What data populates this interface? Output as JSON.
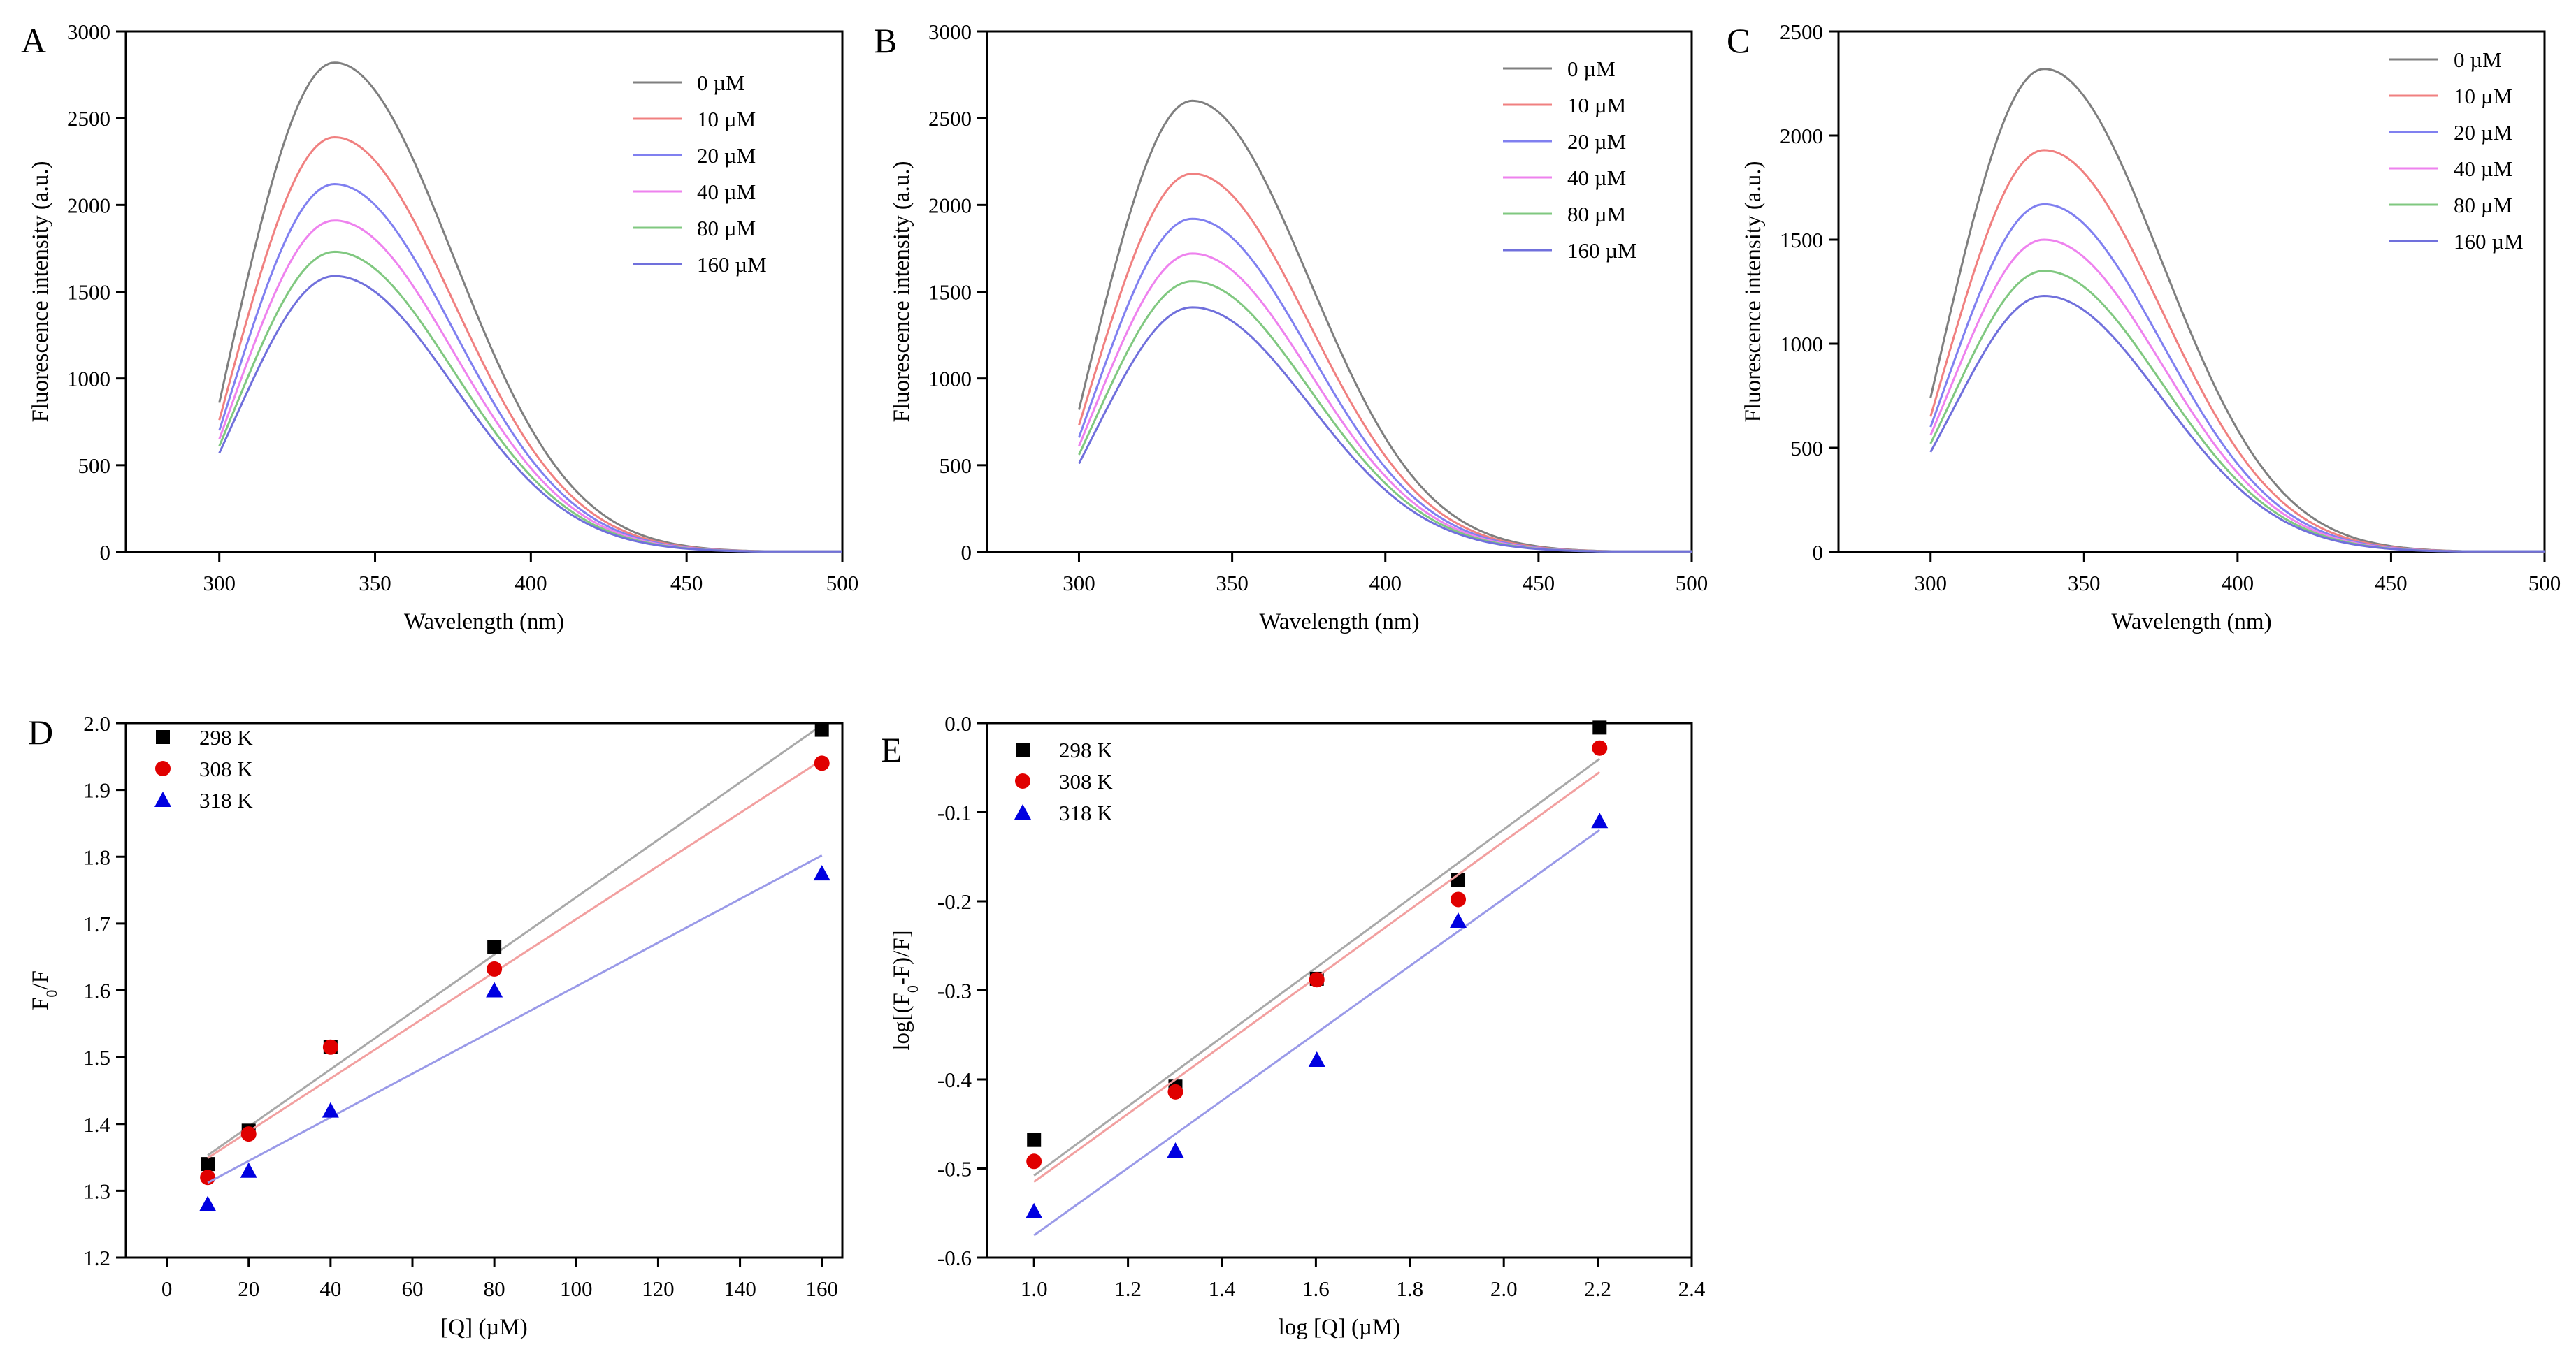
{
  "chart_data": [
    {
      "id": "A",
      "type": "line",
      "panel_label": "A",
      "title": "",
      "xlabel": "Wavelength (nm)",
      "ylabel": "Fluorescence intensity (a.u.)",
      "xlim": [
        270,
        500
      ],
      "ylim": [
        0,
        3000
      ],
      "xticks": [
        300,
        350,
        400,
        450,
        500
      ],
      "yticks": [
        0,
        500,
        1000,
        1500,
        2000,
        2500,
        3000
      ],
      "x_range": [
        300,
        500
      ],
      "legend_position": "top-right",
      "series": [
        {
          "name": "0 µM",
          "color": "#7f7f7f",
          "peak_x": 337,
          "peak_y": 2820,
          "start_y": 860,
          "end_y": 3
        },
        {
          "name": "10 µM",
          "color": "#f08080",
          "peak_x": 337,
          "peak_y": 2390,
          "start_y": 760,
          "end_y": 3
        },
        {
          "name": "20 µM",
          "color": "#8080f0",
          "peak_x": 337,
          "peak_y": 2120,
          "start_y": 700,
          "end_y": 3
        },
        {
          "name": "40 µM",
          "color": "#ee82ee",
          "peak_x": 337,
          "peak_y": 1910,
          "start_y": 650,
          "end_y": 3
        },
        {
          "name": "80 µM",
          "color": "#80c880",
          "peak_x": 337,
          "peak_y": 1730,
          "start_y": 610,
          "end_y": 3
        },
        {
          "name": "160 µM",
          "color": "#7070dc",
          "peak_x": 337,
          "peak_y": 1590,
          "start_y": 570,
          "end_y": 3
        }
      ]
    },
    {
      "id": "B",
      "type": "line",
      "panel_label": "B",
      "title": "",
      "xlabel": "Wavelength (nm)",
      "ylabel": "Fluorescence intensity (a.u.)",
      "xlim": [
        270,
        500
      ],
      "ylim": [
        0,
        3000
      ],
      "xticks": [
        300,
        350,
        400,
        450,
        500
      ],
      "yticks": [
        0,
        500,
        1000,
        1500,
        2000,
        2500,
        3000
      ],
      "x_range": [
        300,
        500
      ],
      "legend_position": "top-right",
      "series": [
        {
          "name": "0 µM",
          "color": "#7f7f7f",
          "peak_x": 337,
          "peak_y": 2600,
          "start_y": 820,
          "end_y": 3
        },
        {
          "name": "10 µM",
          "color": "#f08080",
          "peak_x": 337,
          "peak_y": 2180,
          "start_y": 730,
          "end_y": 3
        },
        {
          "name": "20 µM",
          "color": "#8080f0",
          "peak_x": 337,
          "peak_y": 1920,
          "start_y": 660,
          "end_y": 3
        },
        {
          "name": "40 µM",
          "color": "#ee82ee",
          "peak_x": 337,
          "peak_y": 1720,
          "start_y": 610,
          "end_y": 3
        },
        {
          "name": "80 µM",
          "color": "#80c880",
          "peak_x": 337,
          "peak_y": 1560,
          "start_y": 560,
          "end_y": 3
        },
        {
          "name": "160 µM",
          "color": "#7070dc",
          "peak_x": 337,
          "peak_y": 1410,
          "start_y": 510,
          "end_y": 3
        }
      ]
    },
    {
      "id": "C",
      "type": "line",
      "panel_label": "C",
      "title": "",
      "xlabel": "Wavelength (nm)",
      "ylabel": "Fluorescence intensity (a.u.)",
      "xlim": [
        270,
        500
      ],
      "ylim": [
        0,
        2500
      ],
      "xticks": [
        300,
        350,
        400,
        450,
        500
      ],
      "yticks": [
        0,
        500,
        1000,
        1500,
        2000,
        2500
      ],
      "x_range": [
        300,
        500
      ],
      "legend_position": "top-right",
      "series": [
        {
          "name": "0 µM",
          "color": "#7f7f7f",
          "peak_x": 337,
          "peak_y": 2320,
          "start_y": 740,
          "end_y": 3
        },
        {
          "name": "10 µM",
          "color": "#f08080",
          "peak_x": 337,
          "peak_y": 1930,
          "start_y": 650,
          "end_y": 3
        },
        {
          "name": "20 µM",
          "color": "#8080f0",
          "peak_x": 337,
          "peak_y": 1670,
          "start_y": 600,
          "end_y": 3
        },
        {
          "name": "40 µM",
          "color": "#ee82ee",
          "peak_x": 337,
          "peak_y": 1500,
          "start_y": 560,
          "end_y": 3
        },
        {
          "name": "80 µM",
          "color": "#80c880",
          "peak_x": 337,
          "peak_y": 1350,
          "start_y": 520,
          "end_y": 3
        },
        {
          "name": "160 µM",
          "color": "#7070dc",
          "peak_x": 337,
          "peak_y": 1230,
          "start_y": 480,
          "end_y": 3
        }
      ]
    },
    {
      "id": "D",
      "type": "scatter",
      "panel_label": "D",
      "title": "",
      "xlabel": "[Q] (µM)",
      "ylabel_main": "F",
      "ylabel_sub": "0",
      "ylabel_tail": "/F",
      "xlim": [
        -10,
        165
      ],
      "ylim": [
        1.2,
        2.0
      ],
      "xticks": [
        0,
        20,
        40,
        60,
        80,
        100,
        120,
        140,
        160
      ],
      "ytick_labels": [
        "1.2",
        "1.3",
        "1.4",
        "1.5",
        "1.6",
        "1.7",
        "1.8",
        "1.9",
        "2.0"
      ],
      "legend_position": "top-left",
      "series": [
        {
          "name": "298 K",
          "marker": "square",
          "color": "#000000",
          "line_color": "#a9a9a9",
          "x": [
            10,
            20,
            40,
            80,
            160
          ],
          "y": [
            1.34,
            1.39,
            1.515,
            1.665,
            1.99
          ],
          "fit": {
            "x": [
              10,
              160
            ],
            "y": [
              1.353,
              1.997
            ]
          }
        },
        {
          "name": "308 K",
          "marker": "circle",
          "color": "#e00000",
          "line_color": "#f2a0a0",
          "x": [
            10,
            20,
            40,
            80,
            160
          ],
          "y": [
            1.32,
            1.385,
            1.515,
            1.632,
            1.94
          ],
          "fit": {
            "x": [
              10,
              160
            ],
            "y": [
              1.349,
              1.945
            ]
          }
        },
        {
          "name": "318 K",
          "marker": "triangle",
          "color": "#0000e0",
          "line_color": "#9a9ae8",
          "x": [
            10,
            20,
            40,
            80,
            160
          ],
          "y": [
            1.28,
            1.33,
            1.42,
            1.6,
            1.775
          ],
          "fit": {
            "x": [
              10,
              160
            ],
            "y": [
              1.312,
              1.802
            ]
          }
        }
      ]
    },
    {
      "id": "E",
      "type": "scatter",
      "panel_label": "E",
      "title": "",
      "xlabel": "log [Q] (µM)",
      "ylabel_main": "log[(F",
      "ylabel_sub": "0",
      "ylabel_tail": "-F)/F]",
      "xlim": [
        0.9,
        2.4
      ],
      "ylim": [
        -0.6,
        0.0
      ],
      "xticks": [
        1.0,
        1.2,
        1.4,
        1.6,
        1.8,
        2.0,
        2.2,
        2.4
      ],
      "ytick_labels": [
        "-0.6",
        "-0.5",
        "-0.4",
        "-0.3",
        "-0.2",
        "-0.1",
        "0.0"
      ],
      "legend_position": "top-left",
      "series": [
        {
          "name": "298 K",
          "marker": "square",
          "color": "#000000",
          "line_color": "#a9a9a9",
          "x": [
            1.0,
            1.301,
            1.602,
            1.903,
            2.204
          ],
          "y": [
            -0.468,
            -0.408,
            -0.287,
            -0.176,
            -0.005
          ],
          "fit": {
            "x": [
              1.0,
              2.204
            ],
            "y": [
              -0.508,
              -0.04
            ]
          }
        },
        {
          "name": "308 K",
          "marker": "circle",
          "color": "#e00000",
          "line_color": "#f2a0a0",
          "x": [
            1.0,
            1.301,
            1.602,
            1.903,
            2.204
          ],
          "y": [
            -0.492,
            -0.414,
            -0.288,
            -0.198,
            -0.028
          ],
          "fit": {
            "x": [
              1.0,
              2.204
            ],
            "y": [
              -0.515,
              -0.055
            ]
          }
        },
        {
          "name": "318 K",
          "marker": "triangle",
          "color": "#0000e0",
          "line_color": "#9a9ae8",
          "x": [
            1.0,
            1.301,
            1.602,
            1.903,
            2.204
          ],
          "y": [
            -0.548,
            -0.48,
            -0.378,
            -0.222,
            -0.11
          ],
          "fit": {
            "x": [
              1.0,
              2.204
            ],
            "y": [
              -0.575,
              -0.12
            ]
          }
        }
      ]
    }
  ]
}
